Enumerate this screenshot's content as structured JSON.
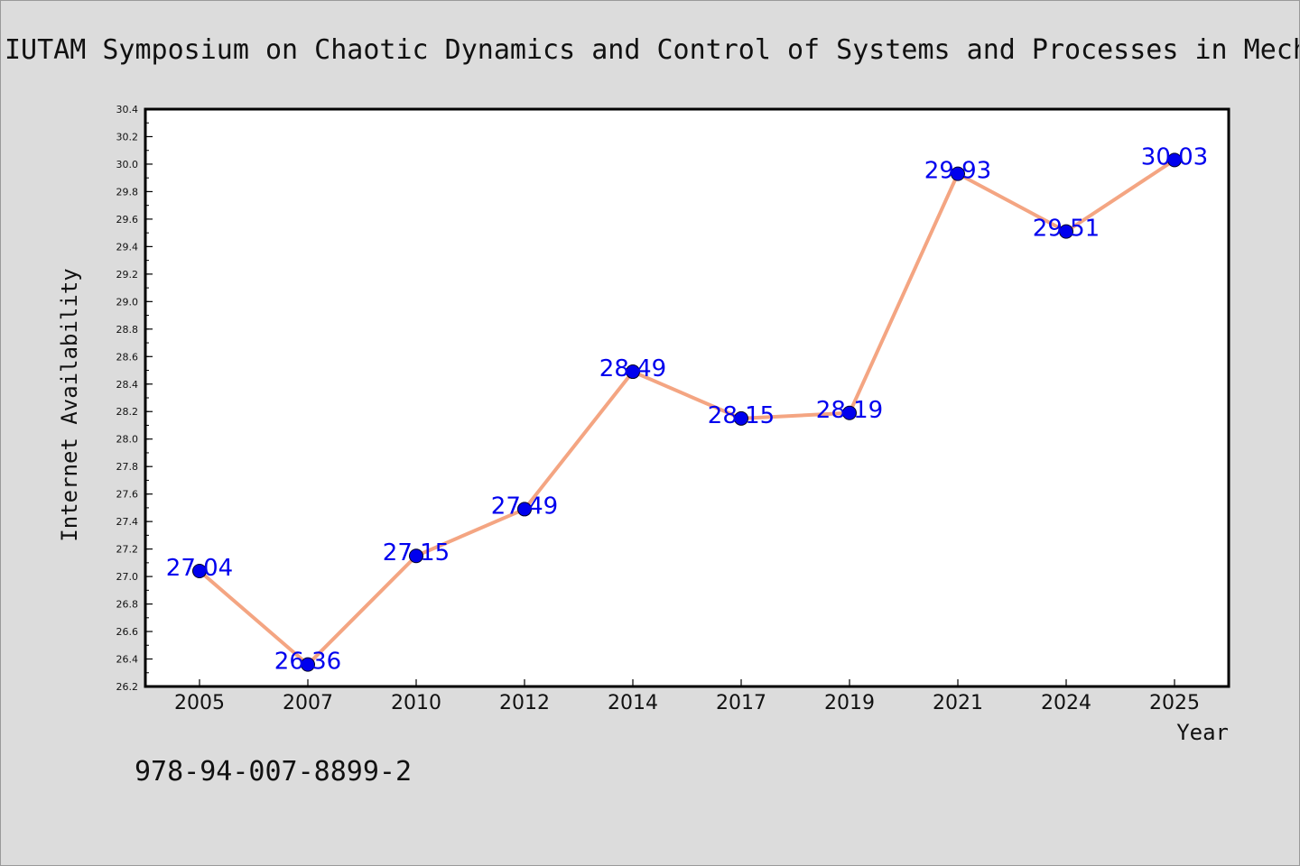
{
  "chart_data": {
    "type": "line",
    "title": "IUTAM Symposium on Chaotic Dynamics and Control of Systems and Processes in Mechanics",
    "xlabel": "Year",
    "ylabel": "Internet Availability",
    "categories": [
      "2005",
      "2007",
      "2010",
      "2012",
      "2014",
      "2017",
      "2019",
      "2021",
      "2024",
      "2025"
    ],
    "series": [
      {
        "values": [
          27.04,
          26.36,
          27.15,
          27.49,
          28.49,
          28.15,
          28.19,
          29.93,
          29.51,
          30.03
        ],
        "labels": [
          "27.04",
          "26.36",
          "27.15",
          "27.49",
          "28.49",
          "28.15",
          "28.19",
          "29.93",
          "29.51",
          "30.03"
        ],
        "line_color": "#f4a582",
        "marker_color": "#0000ee",
        "label_color": "#0000ee"
      }
    ],
    "ylim": [
      26.2,
      30.4
    ],
    "yticks": [
      "26.2",
      "26.4",
      "26.6",
      "26.8",
      "27.0",
      "27.2",
      "27.4",
      "27.6",
      "27.8",
      "28.0",
      "28.2",
      "28.4",
      "28.6",
      "28.8",
      "29.0",
      "29.2",
      "29.4",
      "29.6",
      "29.8",
      "30.0",
      "30.2",
      "30.4"
    ],
    "grid": false,
    "legend": "none"
  },
  "footer": {
    "isbn": "978-94-007-8899-2"
  }
}
